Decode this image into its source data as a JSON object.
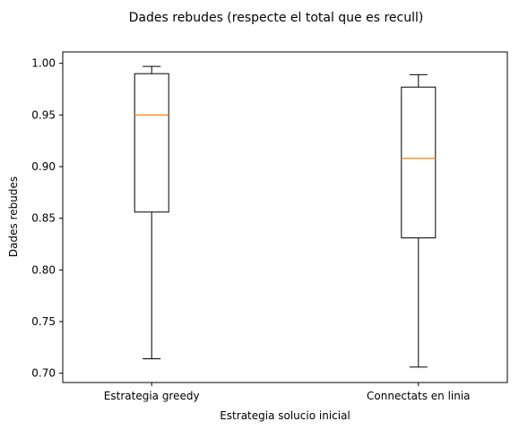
{
  "chart_data": {
    "type": "box",
    "title": "Dades rebudes (respecte el total que es recull)",
    "xlabel": "Estrategia solucio inicial",
    "ylabel": "Dades rebudes",
    "ylim": [
      0.691,
      1.011
    ],
    "yticks": [
      0.7,
      0.75,
      0.8,
      0.85,
      0.9,
      0.95,
      1.0
    ],
    "ytick_labels": [
      "0.70",
      "0.75",
      "0.80",
      "0.85",
      "0.90",
      "0.95",
      "1.00"
    ],
    "categories": [
      "Estrategia greedy",
      "Connectats en linia"
    ],
    "boxes": [
      {
        "category": "Estrategia greedy",
        "min": 0.714,
        "q1": 0.856,
        "median": 0.95,
        "q3": 0.99,
        "max": 0.997
      },
      {
        "category": "Connectats en linia",
        "min": 0.706,
        "q1": 0.831,
        "median": 0.908,
        "q3": 0.977,
        "max": 0.989
      }
    ],
    "grid": false,
    "colors": {
      "box": "#000000",
      "median": "#ff7f0e",
      "axes": "#000000"
    }
  }
}
